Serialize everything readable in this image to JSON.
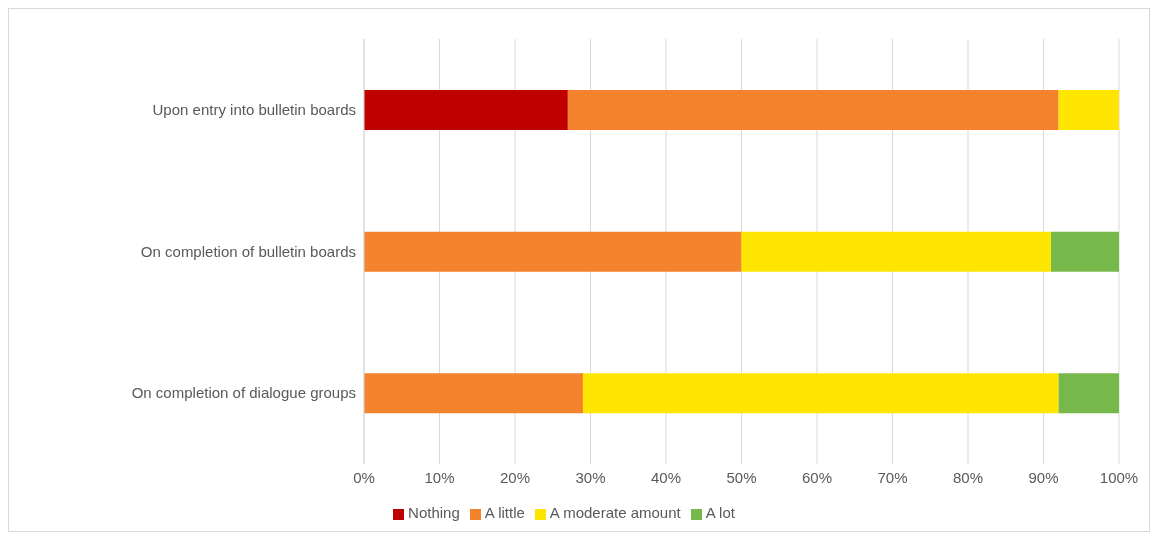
{
  "chart_data": {
    "type": "bar",
    "orientation": "horizontal",
    "stacked": true,
    "categories": [
      "Upon entry into bulletin boards",
      "On completion of bulletin boards",
      "On completion of dialogue groups"
    ],
    "series": [
      {
        "name": "Nothing",
        "color": "#c00000",
        "values": [
          27,
          0,
          0
        ]
      },
      {
        "name": "A little",
        "color": "#f5822d",
        "values": [
          65,
          50,
          29
        ]
      },
      {
        "name": "A moderate amount",
        "color": "#ffe600",
        "values": [
          8,
          41,
          63
        ]
      },
      {
        "name": "A lot",
        "color": "#77b84a",
        "values": [
          0,
          9,
          8
        ]
      }
    ],
    "xlim": [
      0,
      100
    ],
    "xticks": [
      {
        "value": 0,
        "label": "0%"
      },
      {
        "value": 10,
        "label": "10%"
      },
      {
        "value": 20,
        "label": "20%"
      },
      {
        "value": 30,
        "label": "30%"
      },
      {
        "value": 40,
        "label": "40%"
      },
      {
        "value": 50,
        "label": "50%"
      },
      {
        "value": 60,
        "label": "60%"
      },
      {
        "value": 70,
        "label": "70%"
      },
      {
        "value": 80,
        "label": "80%"
      },
      {
        "value": 90,
        "label": "90%"
      },
      {
        "value": 100,
        "label": "100%"
      }
    ],
    "grid": "x",
    "legend": "bottom"
  }
}
